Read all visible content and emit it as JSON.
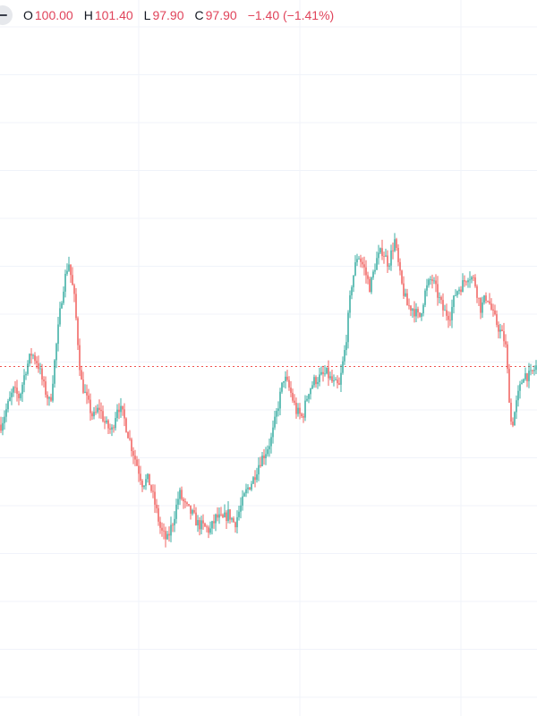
{
  "legend": {
    "open_label": "O",
    "open_value": "100.00",
    "high_label": "H",
    "high_value": "101.40",
    "low_label": "L",
    "low_value": "97.90",
    "close_label": "C",
    "close_value": "97.90",
    "change_text": "−1.40 (−1.41%)"
  },
  "colors": {
    "up": "#26a69a",
    "down": "#ef5350",
    "last_price_line": "#ef5350",
    "grid": "#f0f3fa"
  },
  "chart_data": {
    "type": "line",
    "title": "",
    "xlabel": "",
    "ylabel": "",
    "grid": true,
    "last_price": 97.9,
    "ylim": [
      88.2,
      108.1
    ],
    "series": [
      {
        "values": [
          96.2,
          96.7,
          97.2,
          97.0,
          97.8,
          98.3,
          98.0,
          97.3,
          96.8,
          98.5,
          100.1,
          101.0,
          99.8,
          97.5,
          96.9,
          96.4,
          96.7,
          96.2,
          96.0,
          96.8,
          96.4,
          95.7,
          95.1,
          94.5,
          94.6,
          93.9,
          93.1,
          92.8,
          93.4,
          94.2,
          93.8,
          93.6,
          93.3,
          93.2,
          93.1,
          93.5,
          93.4,
          93.6,
          93.3,
          93.8,
          94.3,
          94.6,
          95.1,
          95.4,
          95.8,
          96.7,
          97.6,
          97.2,
          96.6,
          96.4,
          97.2,
          97.5,
          97.6,
          97.7,
          97.4,
          97.3,
          98.5,
          100.3,
          101.2,
          100.8,
          100.2,
          101.0,
          101.3,
          100.9,
          101.6,
          100.4,
          99.7,
          99.6,
          99.3,
          100.1,
          100.5,
          100.0,
          99.5,
          99.4,
          100.1,
          100.3,
          100.6,
          100.4,
          99.6,
          100.0,
          99.4,
          99.0,
          98.6,
          96.1,
          97.0,
          97.7,
          97.6,
          97.9
        ]
      }
    ]
  }
}
